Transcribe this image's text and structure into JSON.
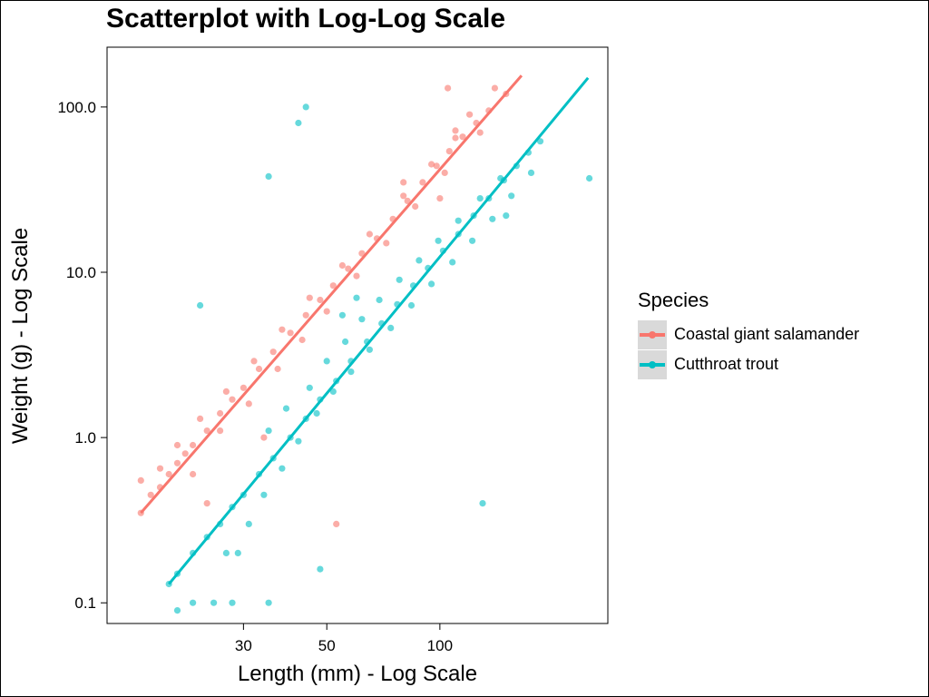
{
  "chart_data": {
    "type": "scatter",
    "title": "Scatterplot with Log-Log Scale",
    "xlabel": "Length (mm) - Log Scale",
    "ylabel": "Weight (g) - Log Scale",
    "x_scale": "log",
    "y_scale": "log",
    "xlim": [
      13,
      280
    ],
    "ylim": [
      0.075,
      230
    ],
    "x_ticks": [
      30,
      50,
      100
    ],
    "x_tick_labels": [
      "30",
      "50",
      "100"
    ],
    "y_ticks": [
      0.1,
      1.0,
      10.0,
      100.0
    ],
    "y_tick_labels": [
      "0.1",
      "1.0",
      "10.0",
      "100.0"
    ],
    "grid": false,
    "legend_title": "Species",
    "legend_position": "right",
    "series": [
      {
        "name": "Coastal giant salamander",
        "color": "#F8766D",
        "fit_line": [
          [
            16,
            0.35
          ],
          [
            165,
            155
          ]
        ],
        "points": [
          [
            16,
            0.35
          ],
          [
            17,
            0.45
          ],
          [
            18,
            0.5
          ],
          [
            19,
            0.6
          ],
          [
            20,
            0.7
          ],
          [
            21,
            0.8
          ],
          [
            22,
            0.9
          ],
          [
            24,
            1.1
          ],
          [
            26,
            1.4
          ],
          [
            28,
            1.7
          ],
          [
            30,
            2.0
          ],
          [
            33,
            2.6
          ],
          [
            36,
            3.3
          ],
          [
            40,
            4.3
          ],
          [
            44,
            5.5
          ],
          [
            48,
            6.8
          ],
          [
            52,
            8.3
          ],
          [
            57,
            10.5
          ],
          [
            62,
            13
          ],
          [
            68,
            16
          ],
          [
            75,
            21
          ],
          [
            82,
            27
          ],
          [
            90,
            35
          ],
          [
            98,
            44
          ],
          [
            106,
            54
          ],
          [
            115,
            66
          ],
          [
            125,
            80
          ],
          [
            135,
            95
          ],
          [
            150,
            120
          ],
          [
            16,
            0.55
          ],
          [
            18,
            0.65
          ],
          [
            20,
            0.9
          ],
          [
            23,
            1.3
          ],
          [
            27,
            1.9
          ],
          [
            32,
            2.9
          ],
          [
            38,
            4.5
          ],
          [
            45,
            7
          ],
          [
            55,
            11
          ],
          [
            65,
            17
          ],
          [
            80,
            29
          ],
          [
            95,
            45
          ],
          [
            110,
            65
          ],
          [
            120,
            90
          ],
          [
            140,
            130
          ],
          [
            22,
            0.6
          ],
          [
            26,
            1.1
          ],
          [
            31,
            1.6
          ],
          [
            37,
            2.6
          ],
          [
            43,
            3.9
          ],
          [
            50,
            5.8
          ],
          [
            60,
            9.5
          ],
          [
            72,
            15
          ],
          [
            86,
            25
          ],
          [
            103,
            40
          ],
          [
            128,
            70
          ],
          [
            53,
            0.3
          ],
          [
            105,
            130
          ],
          [
            80,
            35
          ],
          [
            100,
            28
          ],
          [
            34,
            1.0
          ],
          [
            24,
            0.4
          ],
          [
            110,
            72
          ]
        ]
      },
      {
        "name": "Cutthroat trout",
        "color": "#00BFC4",
        "fit_line": [
          [
            19,
            0.13
          ],
          [
            248,
            150
          ]
        ],
        "points": [
          [
            19,
            0.13
          ],
          [
            20,
            0.15
          ],
          [
            22,
            0.2
          ],
          [
            24,
            0.25
          ],
          [
            26,
            0.3
          ],
          [
            28,
            0.38
          ],
          [
            30,
            0.45
          ],
          [
            33,
            0.6
          ],
          [
            36,
            0.75
          ],
          [
            40,
            1.0
          ],
          [
            44,
            1.3
          ],
          [
            48,
            1.7
          ],
          [
            53,
            2.2
          ],
          [
            58,
            2.9
          ],
          [
            64,
            3.8
          ],
          [
            70,
            4.9
          ],
          [
            77,
            6.4
          ],
          [
            85,
            8.3
          ],
          [
            93,
            10.6
          ],
          [
            102,
            13.5
          ],
          [
            112,
            17
          ],
          [
            123,
            22
          ],
          [
            135,
            28
          ],
          [
            148,
            36
          ],
          [
            160,
            44
          ],
          [
            172,
            53
          ],
          [
            185,
            62
          ],
          [
            27,
            0.2
          ],
          [
            29,
            0.2
          ],
          [
            31,
            0.3
          ],
          [
            34,
            0.45
          ],
          [
            38,
            0.65
          ],
          [
            42,
            0.95
          ],
          [
            47,
            1.4
          ],
          [
            52,
            1.9
          ],
          [
            58,
            2.5
          ],
          [
            65,
            3.4
          ],
          [
            74,
            4.6
          ],
          [
            84,
            6.3
          ],
          [
            95,
            8.5
          ],
          [
            108,
            11.5
          ],
          [
            122,
            15.5
          ],
          [
            138,
            21
          ],
          [
            155,
            29
          ],
          [
            175,
            40
          ],
          [
            35,
            1.1
          ],
          [
            39,
            1.5
          ],
          [
            45,
            2.0
          ],
          [
            50,
            2.9
          ],
          [
            56,
            3.8
          ],
          [
            62,
            5.2
          ],
          [
            69,
            6.8
          ],
          [
            78,
            9.0
          ],
          [
            88,
            11.8
          ],
          [
            99,
            15.5
          ],
          [
            112,
            20.5
          ],
          [
            128,
            28
          ],
          [
            145,
            37
          ],
          [
            20,
            0.09
          ],
          [
            22,
            0.1
          ],
          [
            25,
            0.1
          ],
          [
            28,
            0.1
          ],
          [
            35,
            0.1
          ],
          [
            48,
            0.16
          ],
          [
            42,
            80
          ],
          [
            44,
            100
          ],
          [
            35,
            38
          ],
          [
            23,
            6.3
          ],
          [
            250,
            37
          ],
          [
            150,
            22
          ],
          [
            130,
            0.4
          ],
          [
            55,
            5.5
          ],
          [
            60,
            7.0
          ]
        ]
      }
    ]
  }
}
